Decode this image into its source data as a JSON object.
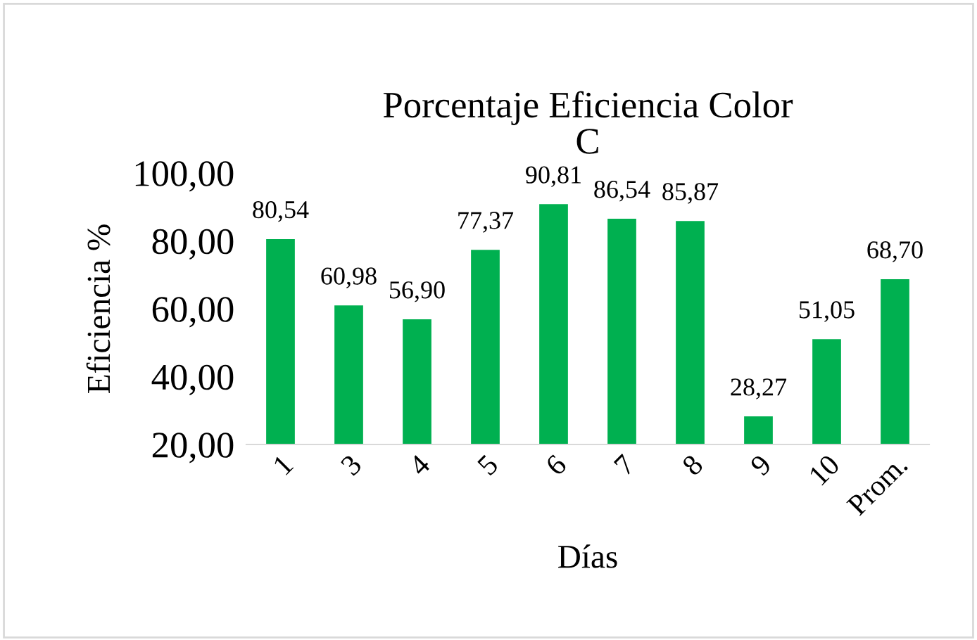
{
  "chart_data": {
    "type": "bar",
    "title": "Porcentaje Eficiencia Color\nC",
    "xlabel": "Días",
    "ylabel": "Eficiencia %",
    "categories": [
      "1",
      "3",
      "4",
      "5",
      "6",
      "7",
      "8",
      "9",
      "10",
      "Prom."
    ],
    "values": [
      80.54,
      60.98,
      56.9,
      77.37,
      90.81,
      86.54,
      85.87,
      28.27,
      51.05,
      68.7
    ],
    "value_labels": [
      "80,54",
      "60,98",
      "56,90",
      "77,37",
      "90,81",
      "86,54",
      "85,87",
      "28,27",
      "51,05",
      "68,70"
    ],
    "color": "#00b050",
    "ylim": [
      20,
      100
    ],
    "yticks": [
      {
        "value": 20,
        "label": "20,00"
      },
      {
        "value": 40,
        "label": "40,00"
      },
      {
        "value": 60,
        "label": "60,00"
      },
      {
        "value": 80,
        "label": "80,00"
      },
      {
        "value": 100,
        "label": "100,00"
      }
    ],
    "grid": false
  }
}
